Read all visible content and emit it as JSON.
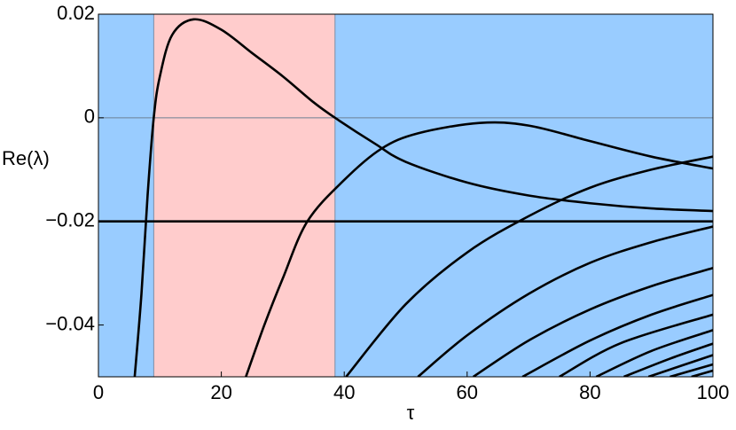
{
  "chart_data": {
    "type": "line",
    "xlabel": "τ",
    "ylabel": "Re(λ)",
    "xlim": [
      0,
      100
    ],
    "ylim": [
      -0.05,
      0.02
    ],
    "xticks": [
      0,
      20,
      40,
      60,
      80,
      100
    ],
    "yticks": [
      {
        "value": 0.02,
        "label": "0.02"
      },
      {
        "value": 0,
        "label": "0"
      },
      {
        "value": -0.02,
        "label": "−0.02"
      },
      {
        "value": -0.04,
        "label": "−0.04"
      }
    ],
    "hline": 0,
    "regions": [
      {
        "x0": 0,
        "x1": 9,
        "color": "#99ccff"
      },
      {
        "x0": 9,
        "x1": 38.5,
        "color": "#ffcccc"
      },
      {
        "x0": 38.5,
        "x1": 100,
        "color": "#99ccff"
      }
    ],
    "series": [
      {
        "color": "#000000",
        "x": [
          5.9,
          7,
          8,
          9,
          10,
          12,
          15.5,
          20,
          25,
          30,
          35,
          38.5,
          45,
          50,
          60,
          70,
          80,
          90,
          100
        ],
        "values": [
          -0.05,
          -0.034,
          -0.015,
          0,
          0.008,
          0.016,
          0.019,
          0.017,
          0.0125,
          0.008,
          0.003,
          0,
          -0.005,
          -0.0085,
          -0.0125,
          -0.015,
          -0.0165,
          -0.0175,
          -0.018
        ]
      },
      {
        "color": "#000000",
        "x": [
          0,
          100
        ],
        "values": [
          -0.02,
          -0.02
        ]
      },
      {
        "color": "#000000",
        "x": [
          24,
          27,
          30,
          34,
          40,
          46,
          52,
          62,
          70,
          80,
          90,
          100
        ],
        "values": [
          -0.05,
          -0.04,
          -0.031,
          -0.02,
          -0.012,
          -0.006,
          -0.003,
          -0.001,
          -0.0015,
          -0.0045,
          -0.0075,
          -0.0098
        ]
      },
      {
        "color": "#000000",
        "x": [
          40.3,
          50,
          60,
          70,
          80,
          90,
          100
        ],
        "values": [
          -0.05,
          -0.036,
          -0.026,
          -0.019,
          -0.0135,
          -0.01,
          -0.0075
        ]
      },
      {
        "color": "#000000",
        "x": [
          52,
          60,
          70,
          80,
          90,
          100
        ],
        "values": [
          -0.05,
          -0.042,
          -0.034,
          -0.028,
          -0.024,
          -0.021
        ]
      },
      {
        "color": "#000000",
        "x": [
          61,
          70,
          80,
          90,
          100
        ],
        "values": [
          -0.05,
          -0.043,
          -0.037,
          -0.0325,
          -0.029
        ]
      },
      {
        "color": "#000000",
        "x": [
          69,
          80,
          90,
          100
        ],
        "values": [
          -0.05,
          -0.043,
          -0.038,
          -0.0342
        ]
      },
      {
        "color": "#000000",
        "x": [
          75,
          85,
          100
        ],
        "values": [
          -0.05,
          -0.0435,
          -0.038
        ]
      },
      {
        "color": "#000000",
        "x": [
          81,
          90,
          100
        ],
        "values": [
          -0.05,
          -0.045,
          -0.041
        ]
      },
      {
        "color": "#000000",
        "x": [
          85.5,
          93,
          100
        ],
        "values": [
          -0.05,
          -0.0465,
          -0.0436
        ]
      },
      {
        "color": "#000000",
        "x": [
          89.5,
          95,
          100
        ],
        "values": [
          -0.05,
          -0.0478,
          -0.0458
        ]
      },
      {
        "color": "#000000",
        "x": [
          93,
          100
        ],
        "values": [
          -0.05,
          -0.0476
        ]
      },
      {
        "color": "#000000",
        "x": [
          96.5,
          100
        ],
        "values": [
          -0.05,
          -0.0488
        ]
      }
    ]
  }
}
